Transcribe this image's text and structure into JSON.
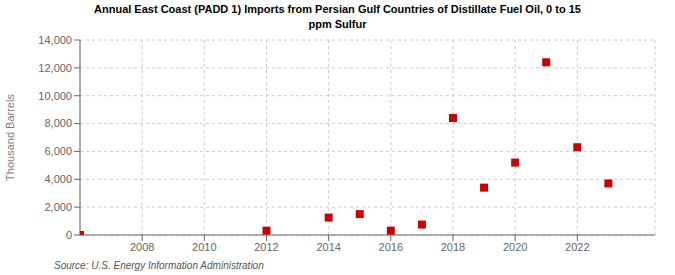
{
  "chart_data": {
    "type": "scatter",
    "title": "Annual East Coast (PADD 1) Imports from Persian Gulf Countries of Distillate Fuel Oil, 0 to 15\nppm Sulfur",
    "ylabel": "Thousand Barrels",
    "annotation": "Source: U.S. Energy Information Administration",
    "x": [
      2006,
      2012,
      2014,
      2015,
      2016,
      2017,
      2018,
      2019,
      2020,
      2021,
      2022,
      2023
    ],
    "values": [
      0,
      310,
      1250,
      1500,
      310,
      750,
      8400,
      3400,
      5200,
      12400,
      6300,
      3700
    ],
    "color": "#cc0000",
    "marker": "square",
    "xlim": [
      2006,
      2024.5
    ],
    "xticks": [
      2008,
      2010,
      2012,
      2014,
      2016,
      2018,
      2020,
      2022
    ],
    "ylim": [
      0,
      14000
    ],
    "yticks": [
      0,
      {
        "value": 2000,
        "label": "2,000"
      },
      {
        "value": 4000,
        "label": "4,000"
      },
      {
        "value": 6000,
        "label": "6,000"
      },
      {
        "value": 8000,
        "label": "8,000"
      },
      {
        "value": 10000,
        "label": "10,000"
      },
      {
        "value": 12000,
        "label": "12,000"
      },
      {
        "value": 14000,
        "label": "14,000"
      }
    ],
    "grid": true
  }
}
